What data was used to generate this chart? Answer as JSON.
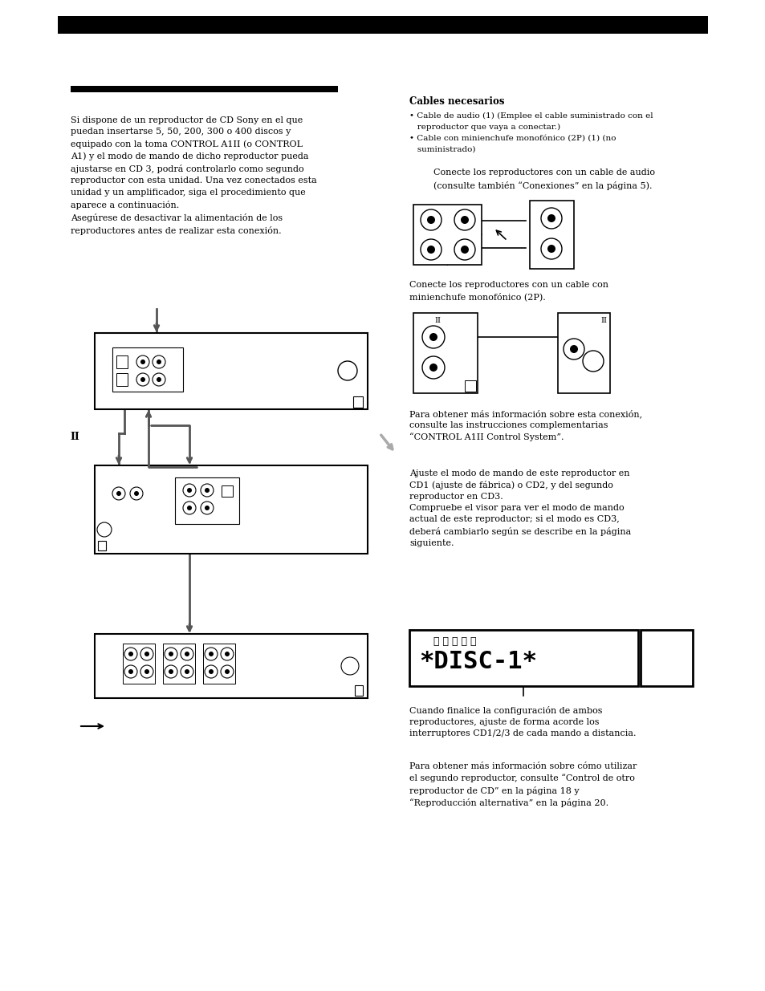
{
  "bg_color": "#ffffff",
  "header_bar_color": "#000000",
  "section_bar_color": "#000000",
  "title_cables": "Cables necesarios",
  "bullet1_line1": "• Cable de audio (1) (Emplee el cable suministrado con el",
  "bullet1_line2": "   reproductor que vaya a conectar.)",
  "bullet2_line1": "• Cable con minienchufe monofónico (2P) (1) (no",
  "bullet2_line2": "   suministrado)",
  "left_para1": "Si dispone de un reproductor de CD Sony en el que\npuedan insertarse 5, 50, 200, 300 o 400 discos y\nequipado con la toma CONTROL A1II (o CONTROL\nA1) y el modo de mando de dicho reproductor pueda\najustarse en CD 3, podrá controlarlo como segundo\nreproductor con esta unidad. Una vez conectados esta\nunidad y un amplificador, siga el procedimiento que\naparece a continuación.\nAsegúrese de desactivar la alimentación de los\nreproductores antes de realizar esta conexión.",
  "right_para_connect1": "    Conecte los reproductores con un cable de audio\n    (consulte también “Conexiones” en la página 5).",
  "right_para_connect2": "Conecte los reproductores con un cable con\nminienchufe monofónico (2P).",
  "right_para_info": "Para obtener más información sobre esta conexión,\nconsulte las instrucciones complementarias\n“CONTROL A1II Control System”.",
  "right_para_adjust": "Ajuste el modo de mando de este reproductor en\nCD1 (ajuste de fábrica) o CD2, y del segundo\nreproductor en CD3.\nCompruebe el visor para ver el modo de mando\nactual de este reproductor; si el modo es CD3,\ndeberá cambiarlo según se describe en la página\nsiguiente.",
  "right_para_final1": "Cuando finalice la configuración de ambos\nreproductores, ajuste de forma acorde los\ninterruptores CD1/2/3 de cada mando a distancia.",
  "right_para_final2": "Para obtener más información sobre cómo utilizar\nel segundo reproductor, consulte “Control de otro\nreproductor de CD” en la página 18 y\n“Reproducción alternativa” en la página 20."
}
